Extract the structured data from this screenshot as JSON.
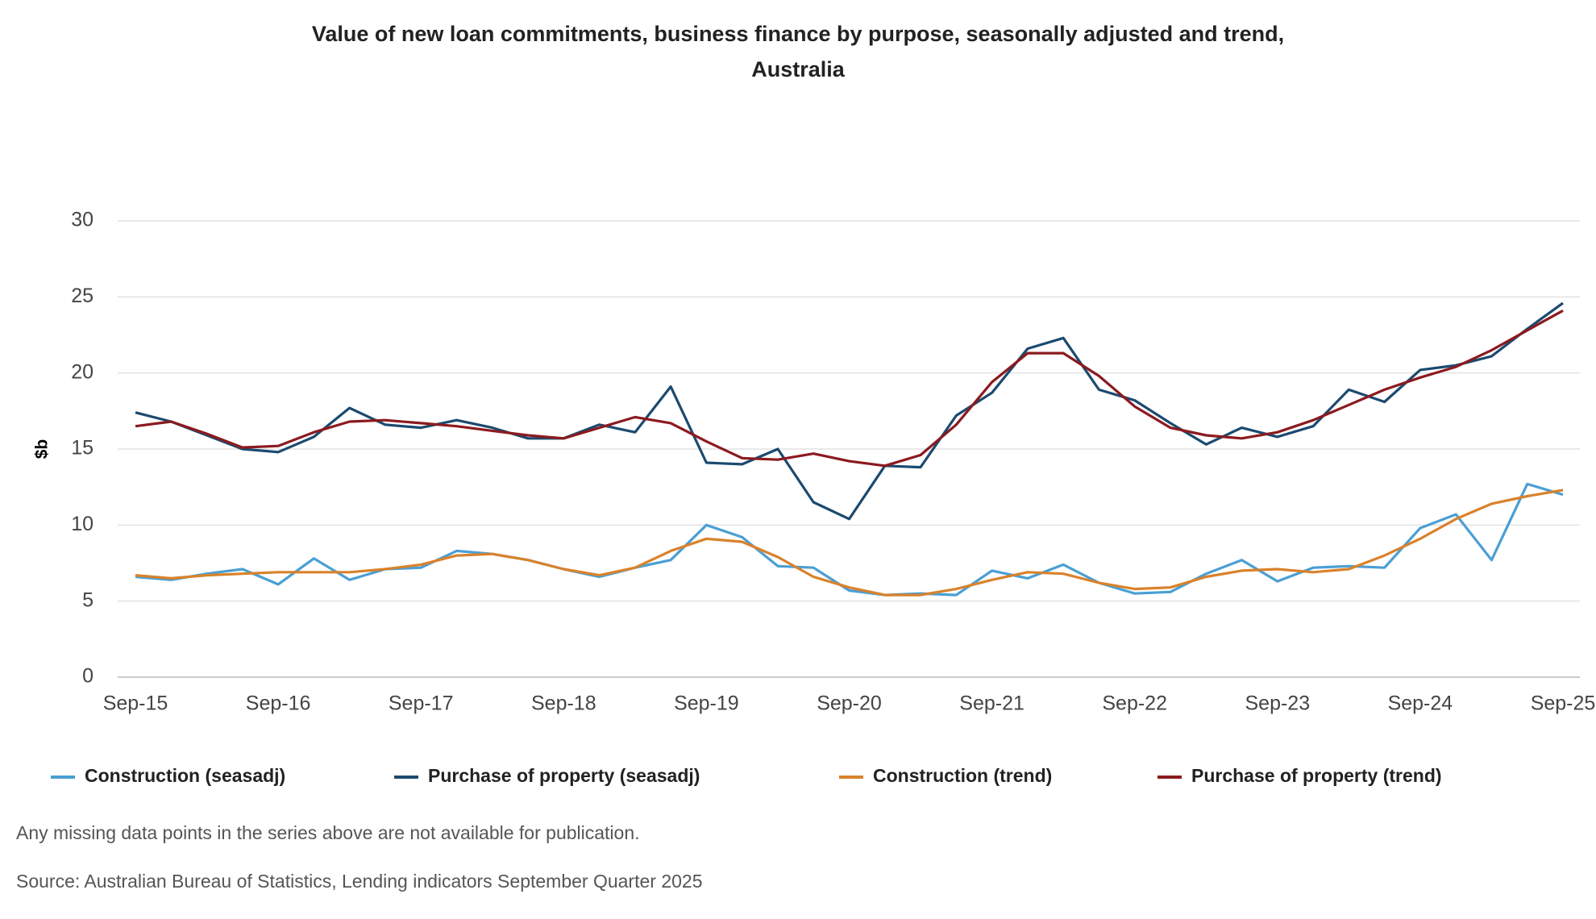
{
  "chart_data": {
    "type": "line",
    "title": "Value of new loan commitments, business finance by purpose, seasonally adjusted and trend, Australia",
    "y_label": "$b",
    "categories": [
      "Sep-15",
      null,
      null,
      null,
      "Sep-16",
      null,
      null,
      null,
      "Sep-17",
      null,
      null,
      null,
      "Sep-18",
      null,
      null,
      null,
      "Sep-19",
      null,
      null,
      null,
      "Sep-20",
      null,
      null,
      null,
      "Sep-21",
      null,
      null,
      null,
      "Sep-22",
      null,
      null,
      null,
      "Sep-23",
      null,
      null,
      null,
      "Sep-24",
      null,
      null,
      null,
      "Sep-25"
    ],
    "ylim": [
      0,
      30
    ],
    "yticks": [
      0,
      5,
      10,
      15,
      20,
      25,
      30
    ],
    "grid": true,
    "legend": "bottom",
    "series": [
      {
        "name": "Construction (seasadj)",
        "color": "#4a9fd4",
        "values": [
          6.6,
          6.4,
          6.8,
          7.1,
          6.1,
          7.8,
          6.4,
          7.1,
          7.2,
          8.3,
          8.1,
          7.7,
          7.1,
          6.6,
          7.2,
          7.7,
          10.0,
          9.2,
          7.3,
          7.2,
          5.7,
          5.4,
          5.5,
          5.4,
          7.0,
          6.5,
          7.4,
          6.2,
          5.5,
          5.6,
          6.8,
          7.7,
          6.3,
          7.2,
          7.3,
          7.2,
          9.8,
          10.7,
          7.7,
          12.7,
          12.0
        ]
      },
      {
        "name": "Purchase of property (seasadj)",
        "color": "#1b4a6f",
        "values": [
          17.4,
          16.8,
          15.9,
          15.0,
          14.8,
          15.8,
          17.7,
          16.6,
          16.4,
          16.9,
          16.4,
          15.7,
          15.7,
          16.6,
          16.1,
          19.1,
          14.1,
          14.0,
          15.0,
          11.5,
          10.4,
          13.9,
          13.8,
          17.2,
          18.7,
          21.6,
          22.3,
          18.9,
          18.2,
          16.7,
          15.3,
          16.4,
          15.8,
          16.5,
          18.9,
          18.1,
          20.2,
          20.5,
          21.1,
          22.9,
          24.6
        ]
      },
      {
        "name": "Construction (trend)",
        "color": "#d9822b",
        "values": [
          6.7,
          6.5,
          6.7,
          6.8,
          6.9,
          6.9,
          6.9,
          7.1,
          7.4,
          8.0,
          8.1,
          7.7,
          7.1,
          6.7,
          7.2,
          8.3,
          9.1,
          8.9,
          7.9,
          6.6,
          5.9,
          5.4,
          5.4,
          5.8,
          6.4,
          6.9,
          6.8,
          6.2,
          5.8,
          5.9,
          6.6,
          7.0,
          7.1,
          6.9,
          7.1,
          8.0,
          9.1,
          10.4,
          11.4,
          11.9,
          12.3
        ]
      },
      {
        "name": "Purchase of property (trend)",
        "color": "#8b1a1f",
        "values": [
          16.5,
          16.8,
          16.0,
          15.1,
          15.2,
          16.1,
          16.8,
          16.9,
          16.7,
          16.5,
          16.2,
          15.9,
          15.7,
          16.4,
          17.1,
          16.7,
          15.5,
          14.4,
          14.3,
          14.7,
          14.2,
          13.9,
          14.6,
          16.6,
          19.4,
          21.3,
          21.3,
          19.8,
          17.8,
          16.4,
          15.9,
          15.7,
          16.1,
          16.9,
          17.9,
          18.9,
          19.7,
          20.4,
          21.5,
          22.8,
          24.1
        ]
      }
    ],
    "notes": [
      "Any missing data points in the series above are not available for publication.",
      "Source: Australian Bureau of Statistics, Lending indicators September Quarter 2025"
    ]
  }
}
